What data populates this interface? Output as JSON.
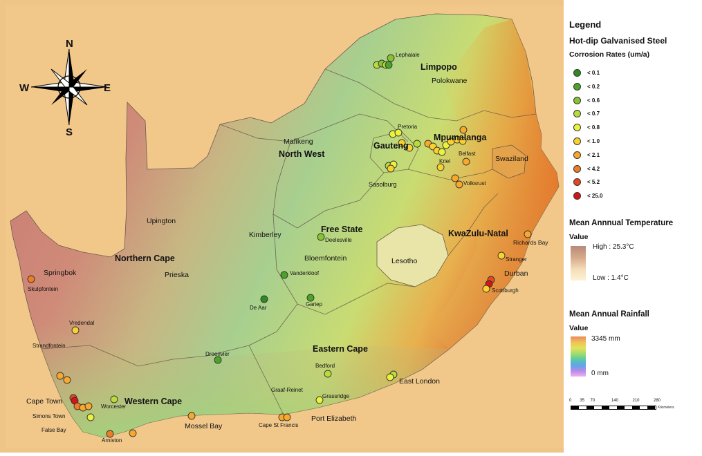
{
  "compass": {
    "n": "N",
    "s": "S",
    "e": "E",
    "w": "W"
  },
  "provinces": [
    {
      "name": "Limpopo"
    },
    {
      "name": "Mpumalanga"
    },
    {
      "name": "Gauteng"
    },
    {
      "name": "North West"
    },
    {
      "name": "Free State"
    },
    {
      "name": "KwaZulu-Natal"
    },
    {
      "name": "Northern Cape"
    },
    {
      "name": "Eastern Cape"
    },
    {
      "name": "Western Cape"
    }
  ],
  "places": [
    "Polokwane",
    "Mafikeng",
    "Swaziland",
    "Upington",
    "Kimberley",
    "Bloemfontein",
    "Lesotho",
    "Springbok",
    "Prieska",
    "Durban",
    "Cape Town",
    "Mossel Bay",
    "Port Elizabeth",
    "East London",
    "Sasolburg",
    "Richards Bay",
    "Belfast",
    "Kriel",
    "Pretoria",
    "Lephalale",
    "Volksrust",
    "Stranger",
    "Scottburgh",
    "Deelesville",
    "Vanderkloof",
    "De Aar",
    "Gariep",
    "Droerivier",
    "Bedford",
    "Graaf-Reinet",
    "Grassridge",
    "Cape St Francis",
    "Vredendal",
    "Strandfontein",
    "Skulpfontein",
    "Simons Town",
    "False Bay",
    "Arniston",
    "Worcester"
  ],
  "legend": {
    "title": "Legend",
    "corrosion_title": "Hot-dip Galvanised Steel",
    "corrosion_subtitle": "Corrosion Rates (um/a)",
    "classes": [
      {
        "label": "< 0.1",
        "color": "#2e8b1e"
      },
      {
        "label": "< 0.2",
        "color": "#4aa428"
      },
      {
        "label": "< 0.6",
        "color": "#86c332"
      },
      {
        "label": "< 0.7",
        "color": "#b9dc3c"
      },
      {
        "label": "< 0.8",
        "color": "#eaf23c"
      },
      {
        "label": "< 1.0",
        "color": "#fad22e"
      },
      {
        "label": "< 2.1",
        "color": "#f8a82a"
      },
      {
        "label": "< 4.2",
        "color": "#ef7d26"
      },
      {
        "label": "< 5.2",
        "color": "#e44a1e"
      },
      {
        "label": "< 25.0",
        "color": "#d61414"
      }
    ],
    "temperature": {
      "title": "Mean Annnual Temperature",
      "value_label": "Value",
      "high": "High : 25.3°C",
      "low": "Low : 1.4°C"
    },
    "rainfall": {
      "title": "Mean Annual Rainfall",
      "value_label": "Value",
      "max": "3345 mm",
      "min": "0 mm"
    },
    "scale": {
      "ticks": [
        "0",
        "35",
        "70",
        "140",
        "210",
        "280"
      ],
      "unit": "Kilometers"
    }
  }
}
